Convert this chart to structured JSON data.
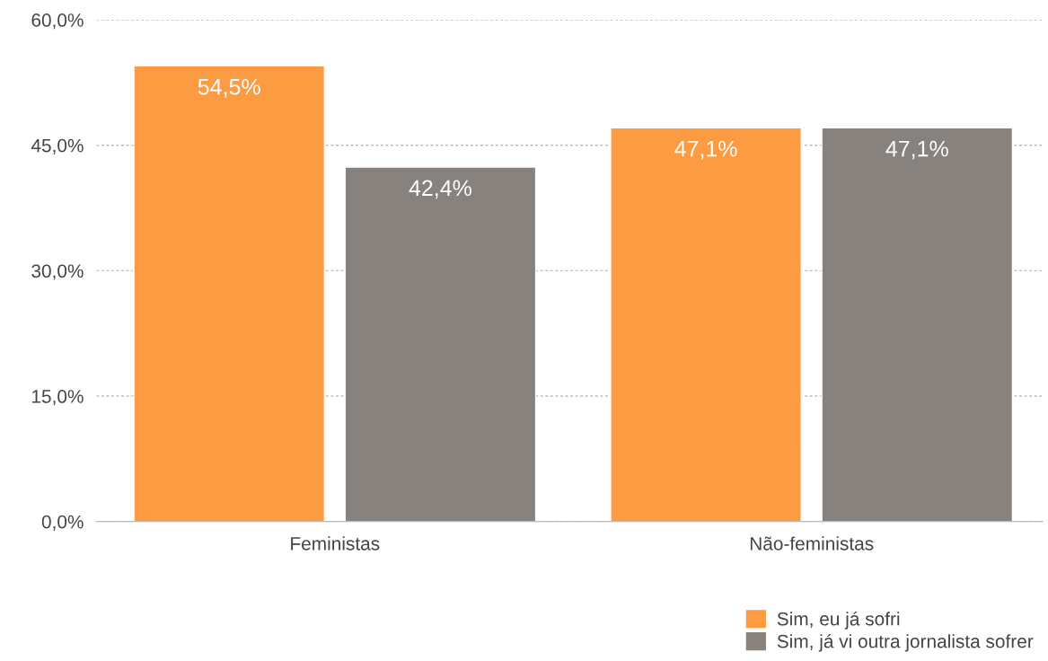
{
  "chart_data": {
    "type": "bar",
    "categories": [
      "Feministas",
      "Não-feministas"
    ],
    "series": [
      {
        "name": "Sim, eu já sofri",
        "color": "#fd9b43",
        "values": [
          54.5,
          47.1
        ],
        "value_labels": [
          "54,5%",
          "47,1%"
        ]
      },
      {
        "name": "Sim, já vi outra jornalista sofrer",
        "color": "#88827e",
        "values": [
          42.4,
          47.1
        ],
        "value_labels": [
          "42,4%",
          "47,1%"
        ]
      }
    ],
    "ylim": [
      0,
      60
    ],
    "yticks": [
      {
        "value": 0,
        "label": "0,0%"
      },
      {
        "value": 15,
        "label": "15,0%"
      },
      {
        "value": 30,
        "label": "30,0%"
      },
      {
        "value": 45,
        "label": "45,0%"
      },
      {
        "value": 60,
        "label": "60,0%"
      }
    ],
    "grid": "y",
    "legend": "bottom right"
  }
}
